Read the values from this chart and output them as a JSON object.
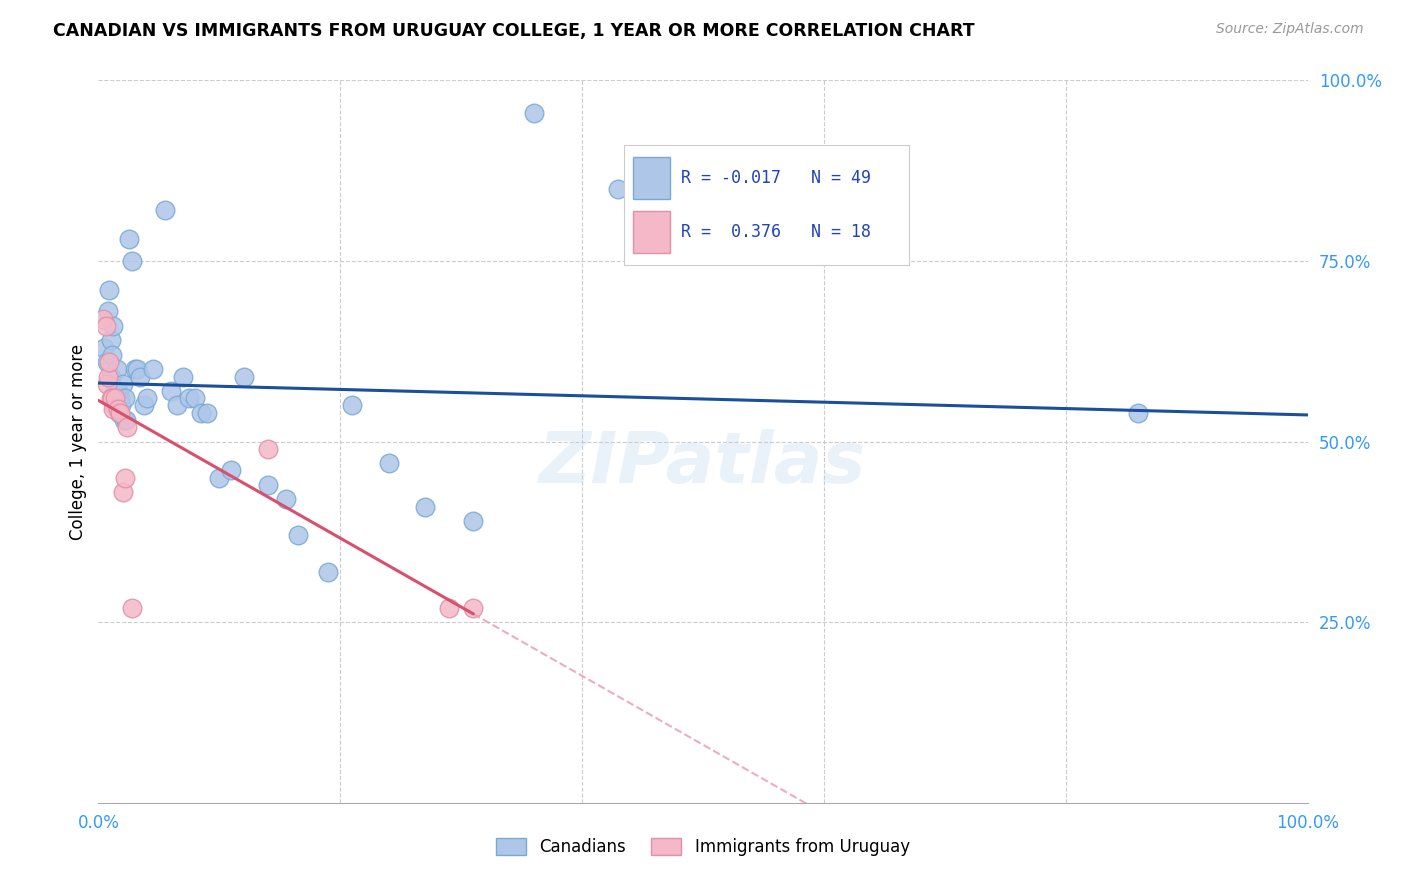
{
  "title": "CANADIAN VS IMMIGRANTS FROM URUGUAY COLLEGE, 1 YEAR OR MORE CORRELATION CHART",
  "source": "Source: ZipAtlas.com",
  "ylabel": "College, 1 year or more",
  "xlim": [
    0.0,
    1.0
  ],
  "ylim": [
    0.0,
    1.0
  ],
  "canadian_color": "#aec6e8",
  "canadian_edge_color": "#7aaad4",
  "uruguay_color": "#f4b8c8",
  "uruguay_edge_color": "#e090a8",
  "line_canadian_color": "#1a4f9c",
  "line_uruguay_color": "#d94f6e",
  "line_uruguay_dashed_color": "#e8a0b4",
  "watermark": "ZIPatlas",
  "canadians_x": [
    0.005,
    0.007,
    0.008,
    0.009,
    0.01,
    0.01,
    0.011,
    0.012,
    0.013,
    0.014,
    0.015,
    0.016,
    0.017,
    0.018,
    0.019,
    0.02,
    0.021,
    0.022,
    0.023,
    0.025,
    0.028,
    0.03,
    0.032,
    0.034,
    0.038,
    0.04,
    0.045,
    0.055,
    0.06,
    0.065,
    0.07,
    0.075,
    0.08,
    0.085,
    0.09,
    0.1,
    0.11,
    0.12,
    0.14,
    0.155,
    0.165,
    0.19,
    0.21,
    0.24,
    0.27,
    0.31,
    0.36,
    0.43,
    0.86
  ],
  "canadians_y": [
    0.63,
    0.61,
    0.68,
    0.71,
    0.59,
    0.64,
    0.62,
    0.66,
    0.55,
    0.57,
    0.6,
    0.57,
    0.54,
    0.56,
    0.55,
    0.58,
    0.53,
    0.56,
    0.53,
    0.78,
    0.75,
    0.6,
    0.6,
    0.59,
    0.55,
    0.56,
    0.6,
    0.82,
    0.57,
    0.55,
    0.59,
    0.56,
    0.56,
    0.54,
    0.54,
    0.45,
    0.46,
    0.59,
    0.44,
    0.42,
    0.37,
    0.32,
    0.55,
    0.47,
    0.41,
    0.39,
    0.955,
    0.85,
    0.54
  ],
  "uruguay_x": [
    0.004,
    0.006,
    0.007,
    0.008,
    0.009,
    0.01,
    0.011,
    0.012,
    0.014,
    0.016,
    0.018,
    0.02,
    0.022,
    0.024,
    0.028,
    0.14,
    0.29,
    0.31
  ],
  "uruguay_y": [
    0.67,
    0.66,
    0.58,
    0.59,
    0.61,
    0.56,
    0.56,
    0.545,
    0.56,
    0.545,
    0.54,
    0.43,
    0.45,
    0.52,
    0.27,
    0.49,
    0.27,
    0.27
  ]
}
